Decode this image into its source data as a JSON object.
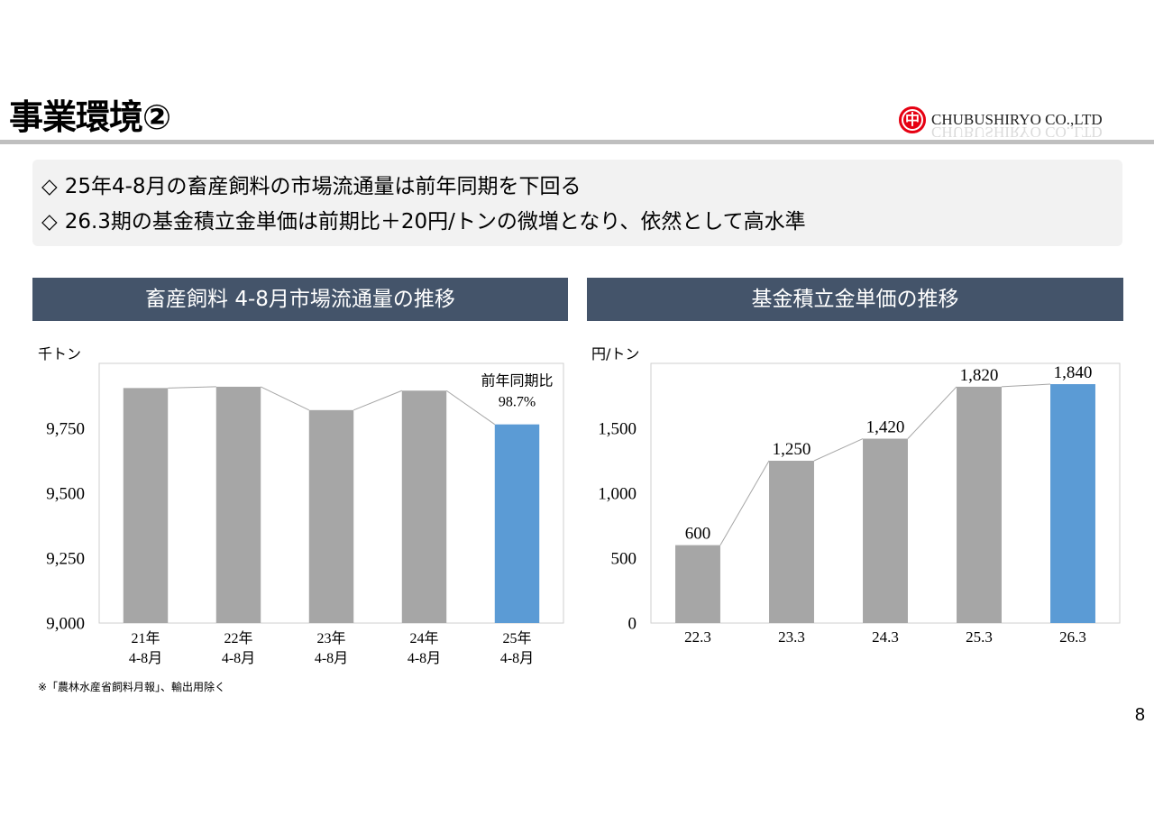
{
  "slide": {
    "title": "事業環境②",
    "logo_glyph": "中",
    "company": "CHUBUSHIRYO CO.,LTD",
    "page_number": "8",
    "footnote": "※「農林水産省飼料月報」、輸出用除く"
  },
  "theme": {
    "header_bg": "#44546a",
    "logo_red": "#e60012",
    "summary_bg": "#f2f2f2"
  },
  "summary": {
    "bullets": [
      {
        "marker": "◇",
        "text": "25年4-8月の畜産飼料の市場流通量は前年同期を下回る"
      },
      {
        "marker": "◇",
        "text": "26.3期の基金積立金単価は前期比＋20円/トンの微増となり、依然として高水準"
      }
    ]
  },
  "chart_data": [
    {
      "type": "bar",
      "title": "畜産飼料 4-8月市場流通量の推移",
      "ylabel": "千トン",
      "categories": [
        [
          "21年",
          "4-8月"
        ],
        [
          "22年",
          "4-8月"
        ],
        [
          "23年",
          "4-8月"
        ],
        [
          "24年",
          "4-8月"
        ],
        [
          "25年",
          "4-8月"
        ]
      ],
      "values": [
        9905,
        9910,
        9820,
        9895,
        9765
      ],
      "ylim": [
        9000,
        10000
      ],
      "yticks": [
        9000,
        9250,
        9500,
        9750
      ],
      "ytick_labels": [
        "9,000",
        "9,250",
        "9,500",
        "9,750"
      ],
      "highlight_index": 4,
      "annotation": {
        "lines": [
          "前年同期比",
          "98.7%"
        ]
      },
      "connector_lines": true,
      "grid": false,
      "colors": {
        "bar": "#a6a6a6",
        "highlight": "#5b9bd5",
        "connector": "#a6a6a6"
      }
    },
    {
      "type": "bar",
      "title": "基金積立金単価の推移",
      "ylabel": "円/トン",
      "categories": [
        "22.3",
        "23.3",
        "24.3",
        "25.3",
        "26.3"
      ],
      "values": [
        600,
        1250,
        1420,
        1820,
        1840
      ],
      "data_labels": [
        "600",
        "1,250",
        "1,420",
        "1,820",
        "1,840"
      ],
      "ylim": [
        0,
        2000
      ],
      "yticks": [
        0,
        500,
        1000,
        1500
      ],
      "ytick_labels": [
        "0",
        "500",
        "1,000",
        "1,500"
      ],
      "highlight_index": 4,
      "connector_lines": true,
      "grid": false,
      "colors": {
        "bar": "#a6a6a6",
        "highlight": "#5b9bd5",
        "connector": "#a6a6a6"
      }
    }
  ]
}
